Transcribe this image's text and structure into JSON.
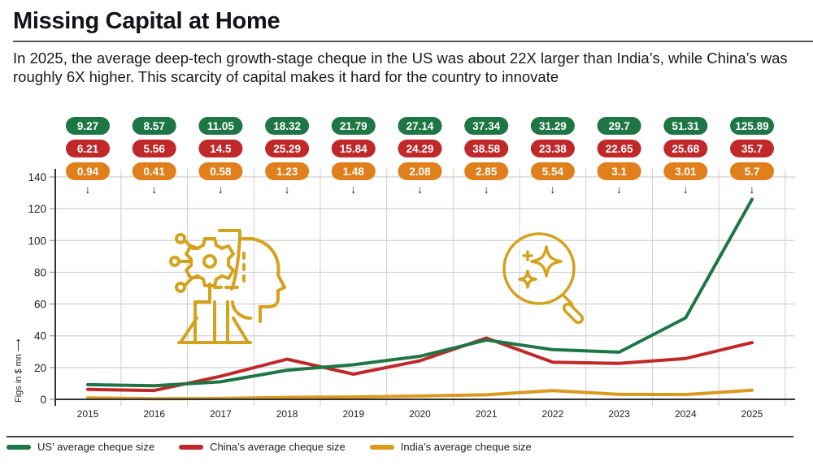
{
  "header": {
    "title": "Missing Capital at Home",
    "subtitle": "In 2025, the average deep-tech growth-stage cheque in the US was about 22X larger than India’s, while China’s was roughly 6X higher. This scarcity of capital makes it hard for the country to innovate"
  },
  "colors": {
    "us": "#1e7645",
    "china": "#c0282a",
    "india": "#e07f1c",
    "india_line": "#d99a1e",
    "illustration": "#d4a21c"
  },
  "chart_data": {
    "type": "line",
    "title": "Missing Capital at Home",
    "xlabel": "",
    "ylabel": "Figs in $ mn ⟶",
    "ylim": [
      0,
      140
    ],
    "yticks": [
      0,
      20,
      40,
      60,
      80,
      100,
      120,
      140
    ],
    "grid": true,
    "legend_position": "bottom",
    "categories": [
      "2015",
      "2016",
      "2017",
      "2018",
      "2019",
      "2020",
      "2021",
      "2022",
      "2023",
      "2024",
      "2025"
    ],
    "series": [
      {
        "name": "US’ average cheque size",
        "key": "us",
        "values": [
          9.27,
          8.57,
          11.05,
          18.32,
          21.79,
          27.14,
          37.34,
          31.29,
          29.7,
          51.31,
          125.89
        ]
      },
      {
        "name": "China’s average cheque size",
        "key": "china",
        "values": [
          6.21,
          5.56,
          14.5,
          25.29,
          15.84,
          24.29,
          38.58,
          23.38,
          22.65,
          25.68,
          35.7
        ]
      },
      {
        "name": "India’s average cheque size",
        "key": "india",
        "values": [
          0.94,
          0.41,
          0.58,
          1.23,
          1.48,
          2.08,
          2.85,
          5.54,
          3.1,
          3.01,
          5.7
        ]
      }
    ],
    "data_labels": {
      "us": [
        "9.27",
        "8.57",
        "11.05",
        "18.32",
        "21.79",
        "27.14",
        "37.34",
        "31.29",
        "29.7",
        "51.31",
        "125.89"
      ],
      "china": [
        "6.21",
        "5.56",
        "14.5",
        "25.29",
        "15.84",
        "24.29",
        "38.58",
        "23.38",
        "22.65",
        "25.68",
        "35.7"
      ],
      "india": [
        "0.94",
        "0.41",
        "0.58",
        "1.23",
        "1.48",
        "2.08",
        "2.85",
        "5.54",
        "3.1",
        "3.01",
        "5.7"
      ]
    },
    "marker_glyph": "↓"
  },
  "legend": {
    "items": [
      {
        "label": "US’ average cheque size",
        "key": "us"
      },
      {
        "label": "China’s average cheque size",
        "key": "china"
      },
      {
        "label": "India’s average cheque size",
        "key": "india_line"
      }
    ]
  },
  "illustrations": [
    {
      "icon": "ai-head-gear-icon"
    },
    {
      "icon": "magnifier-sparkles-icon"
    }
  ]
}
